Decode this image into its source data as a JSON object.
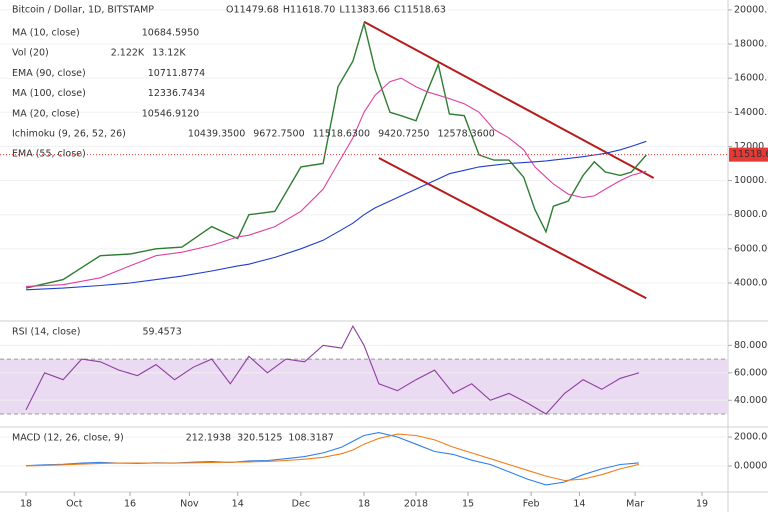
{
  "chart_data": [
    {
      "type": "line",
      "title": "Bitcoin / Dollar, 1D, BITSTAMP",
      "ohlc": [
        "O11479.68",
        "H11618.70",
        "L11383.66",
        "C11518.63"
      ],
      "indicators": [
        {
          "name": "MA (10, close)",
          "values": [
            "10684.5950"
          ],
          "color": "#222222"
        },
        {
          "name": "Vol (20)",
          "values": [
            "2.122K",
            "13.12K"
          ],
          "color": "#0b6e2e"
        },
        {
          "name": "EMA (90, close)",
          "values": [
            "10711.8774"
          ],
          "color": "#2e5e1e"
        },
        {
          "name": "MA (100, close)",
          "values": [
            "12336.7434"
          ],
          "color": "#1e3fcc"
        },
        {
          "name": "MA (20, close)",
          "values": [
            "10546.9120"
          ],
          "color": "#d1239a"
        },
        {
          "name": "Ichimoku (9, 26, 52, 26)",
          "values": [
            "10439.3500",
            "9672.7500",
            "11518.6300",
            "9420.7250",
            "12578.3600"
          ],
          "color": "#2e7d32"
        },
        {
          "name": "EMA (55, close)",
          "color": "#bbbbbb"
        }
      ],
      "last_price": 11518.63,
      "last_color": "#e53935",
      "ylim": [
        1830,
        20580
      ],
      "yticks": [
        {
          "value": 4000,
          "label": "4000.00"
        },
        {
          "value": 6000,
          "label": "6000.00"
        },
        {
          "value": 8000,
          "label": "8000.00"
        },
        {
          "value": 10000,
          "label": "10000.00"
        },
        {
          "value": 12000,
          "label": "12000.00"
        },
        {
          "value": 14000,
          "label": "14000.00"
        },
        {
          "value": 16000,
          "label": "16000.00"
        },
        {
          "value": 18000,
          "label": "18000.00"
        },
        {
          "value": 20000,
          "label": "20000.00"
        }
      ],
      "xlim": [
        -7,
        189
      ],
      "x": [
        0,
        10,
        20,
        28,
        35,
        42,
        50,
        57,
        60,
        67,
        74,
        80,
        84,
        88,
        91,
        94,
        98,
        101,
        105,
        108,
        111,
        114,
        118,
        122,
        126,
        130,
        134,
        137,
        140,
        142,
        146,
        150,
        153,
        156,
        160,
        163,
        167
      ],
      "series": [
        {
          "color": "#2e7d32",
          "values": [
            3700,
            4200,
            5600,
            5700,
            6000,
            6100,
            7300,
            6600,
            8000,
            8200,
            10800,
            11000,
            15500,
            17000,
            19200,
            16500,
            14000,
            13800,
            13500,
            15200,
            16800,
            13900,
            13800,
            11500,
            11200,
            11200,
            10200,
            8300,
            7000,
            8500,
            8800,
            10300,
            11100,
            10500,
            10300,
            10500,
            11500
          ]
        },
        {
          "color": "#e040a0",
          "values": [
            3800,
            3900,
            4300,
            5000,
            5600,
            5800,
            6200,
            6700,
            6800,
            7300,
            8200,
            9500,
            11000,
            12500,
            14000,
            15000,
            15800,
            16000,
            15500,
            15200,
            15000,
            14800,
            14500,
            14000,
            13000,
            12500,
            11800,
            10800,
            10200,
            9800,
            9200,
            9000,
            9100,
            9500,
            10000,
            10300,
            10550
          ]
        },
        {
          "color": "#1e3fcc",
          "values": [
            3600,
            3700,
            3850,
            4000,
            4200,
            4400,
            4700,
            5000,
            5100,
            5500,
            6000,
            6500,
            7000,
            7500,
            8000,
            8400,
            8800,
            9100,
            9500,
            9800,
            10100,
            10400,
            10600,
            10800,
            10900,
            11000,
            11050,
            11100,
            11150,
            11200,
            11300,
            11400,
            11500,
            11600,
            11800,
            12000,
            12300
          ]
        }
      ],
      "lines": [
        {
          "x": [
            91,
            169
          ],
          "values": [
            19300,
            10150
          ],
          "color": "#b71c1c"
        },
        {
          "x": [
            95,
            167
          ],
          "values": [
            11320,
            3100
          ],
          "color": "#b71c1c"
        }
      ]
    },
    {
      "type": "line",
      "title": "RSI (14, close)",
      "value_label": "59.4573",
      "color": "#8e3fa0",
      "band": [
        30,
        70
      ],
      "band_color": "#eadbf2",
      "ylim": [
        22,
        97
      ],
      "yticks": [
        {
          "value": 40,
          "label": "40.0000"
        },
        {
          "value": 60,
          "label": "60.0000"
        },
        {
          "value": 80,
          "label": "80.0000"
        }
      ],
      "xlim": [
        -7,
        189
      ],
      "x": [
        0,
        5,
        10,
        15,
        20,
        25,
        30,
        35,
        40,
        45,
        50,
        55,
        60,
        65,
        70,
        75,
        80,
        85,
        88,
        91,
        95,
        100,
        105,
        110,
        115,
        120,
        125,
        130,
        135,
        140,
        145,
        150,
        155,
        160,
        165
      ],
      "series": [
        {
          "color": "#8e3fa0",
          "values": [
            33,
            60,
            55,
            70,
            68,
            62,
            58,
            66,
            55,
            64,
            70,
            52,
            72,
            60,
            70,
            68,
            80,
            78,
            94,
            80,
            52,
            47,
            55,
            62,
            45,
            52,
            40,
            45,
            38,
            30,
            45,
            55,
            48,
            56,
            60
          ]
        }
      ]
    },
    {
      "type": "line",
      "title": "MACD (12, 26, close, 9)",
      "value_labels": [
        "212.1938",
        "320.5125",
        "108.3187"
      ],
      "value_colors": [
        "#1e6fd9",
        "#1e6fd9",
        "#c0392b"
      ],
      "ylim": [
        -1655,
        2620
      ],
      "yticks": [
        {
          "value": 0,
          "label": "0.0000"
        },
        {
          "value": 2000,
          "label": "2000.0000"
        }
      ],
      "xlim": [
        -7,
        189
      ],
      "xticks": [
        {
          "value": 0,
          "label": "18"
        },
        {
          "value": 13,
          "label": "Oct"
        },
        {
          "value": 28,
          "label": "16"
        },
        {
          "value": 44,
          "label": "Nov"
        },
        {
          "value": 57,
          "label": "14"
        },
        {
          "value": 74,
          "label": "Dec"
        },
        {
          "value": 91,
          "label": "18"
        },
        {
          "value": 105,
          "label": "2018"
        },
        {
          "value": 119,
          "label": "15"
        },
        {
          "value": 136,
          "label": "Feb"
        },
        {
          "value": 149,
          "label": "14"
        },
        {
          "value": 164,
          "label": "Mar"
        },
        {
          "value": 182,
          "label": "19"
        }
      ],
      "x": [
        0,
        5,
        10,
        15,
        20,
        25,
        30,
        35,
        40,
        45,
        50,
        55,
        60,
        65,
        70,
        75,
        80,
        85,
        88,
        91,
        95,
        100,
        105,
        110,
        115,
        120,
        125,
        130,
        135,
        140,
        145,
        150,
        155,
        160,
        165
      ],
      "series": [
        {
          "color": "#2f80ed",
          "values": [
            20,
            80,
            120,
            200,
            250,
            200,
            180,
            220,
            200,
            260,
            300,
            250,
            350,
            380,
            500,
            650,
            900,
            1300,
            1700,
            2100,
            2300,
            2000,
            1500,
            1000,
            800,
            400,
            100,
            -400,
            -900,
            -1300,
            -1100,
            -600,
            -200,
            100,
            212
          ]
        },
        {
          "color": "#f07f1a",
          "values": [
            10,
            40,
            80,
            130,
            180,
            200,
            200,
            200,
            200,
            220,
            250,
            260,
            280,
            320,
            380,
            470,
            600,
            850,
            1100,
            1500,
            1900,
            2200,
            2100,
            1800,
            1300,
            900,
            500,
            100,
            -300,
            -700,
            -1000,
            -900,
            -600,
            -200,
            108
          ]
        }
      ]
    }
  ]
}
